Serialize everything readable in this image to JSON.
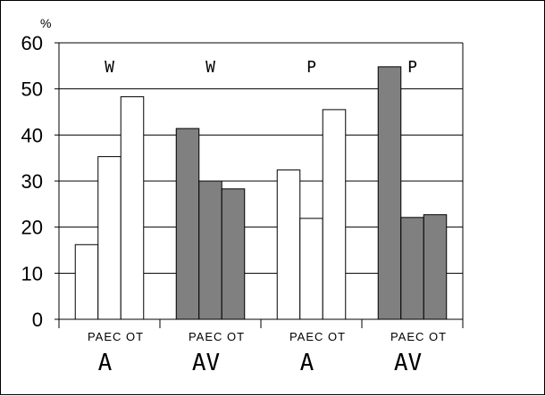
{
  "chart_data": {
    "type": "bar",
    "ylabel": "%",
    "ylim": [
      0,
      60
    ],
    "yticks": [
      "0",
      "10",
      "20",
      "30",
      "40",
      "50",
      "60"
    ],
    "grid": true,
    "groups": [
      {
        "top_label": "W",
        "sub_label": "PAEC OT",
        "bottom_label": "A",
        "fill": "#ffffff",
        "values": [
          16.2,
          35.3,
          48.3
        ]
      },
      {
        "top_label": "W",
        "sub_label": "PAEC OT",
        "bottom_label": "AV",
        "fill": "#808080",
        "values": [
          41.4,
          30.0,
          28.3
        ]
      },
      {
        "top_label": "P",
        "sub_label": "PAEC OT",
        "bottom_label": "A",
        "fill": "#ffffff",
        "values": [
          32.4,
          21.9,
          45.5
        ]
      },
      {
        "top_label": "P",
        "sub_label": "PAEC OT",
        "bottom_label": "AV",
        "fill": "#808080",
        "values": [
          54.8,
          22.1,
          22.7
        ]
      }
    ]
  }
}
